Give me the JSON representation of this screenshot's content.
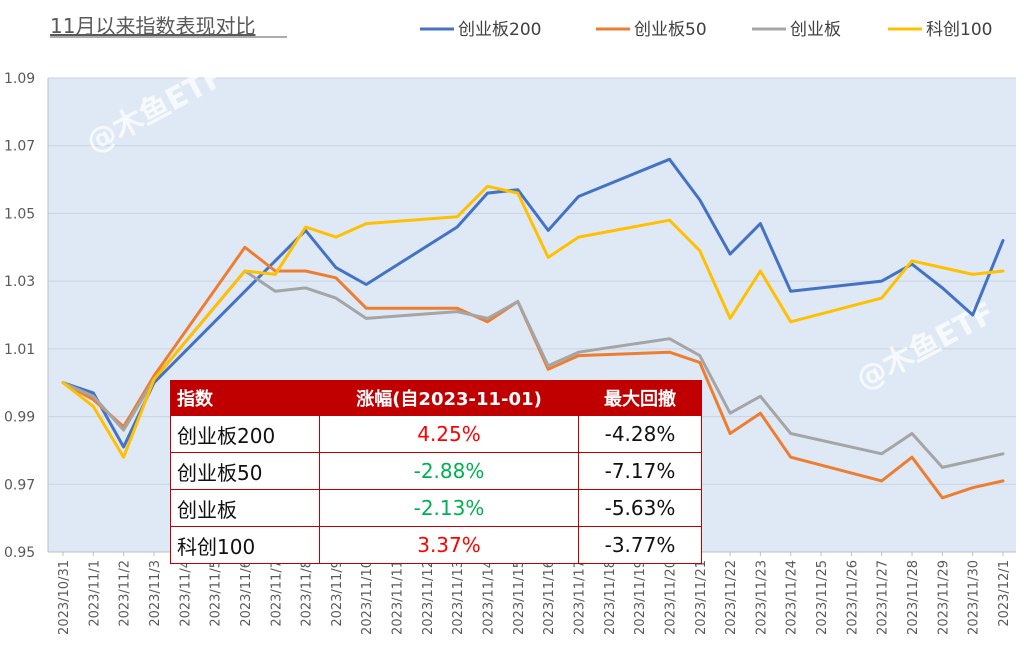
{
  "chart_data": {
    "type": "line",
    "title": "11月以来指数表现对比",
    "ylim": [
      0.95,
      1.09
    ],
    "yticks": [
      "0.95",
      "0.97",
      "0.99",
      "1.01",
      "1.03",
      "1.05",
      "1.07",
      "1.09"
    ],
    "categories": [
      "2023/10/31",
      "2023/11/1",
      "2023/11/2",
      "2023/11/3",
      "2023/11/4",
      "2023/11/5",
      "2023/11/6",
      "2023/11/7",
      "2023/11/8",
      "2023/11/9",
      "2023/11/10",
      "2023/11/11",
      "2023/11/12",
      "2023/11/13",
      "2023/11/14",
      "2023/11/15",
      "2023/11/16",
      "2023/11/17",
      "2023/11/18",
      "2023/11/19",
      "2023/11/20",
      "2023/11/21",
      "2023/11/22",
      "2023/11/23",
      "2023/11/24",
      "2023/11/25",
      "2023/11/26",
      "2023/11/27",
      "2023/11/28",
      "2023/11/29",
      "2023/11/30",
      "2023/12/1"
    ],
    "grid": true,
    "legend_position": "top-right",
    "series": [
      {
        "name": "创业板200",
        "color": "#4472c4",
        "values": [
          1.0,
          0.997,
          0.981,
          1.0,
          null,
          null,
          1.027,
          null,
          1.045,
          1.034,
          1.029,
          null,
          null,
          1.046,
          1.056,
          1.057,
          1.045,
          1.055,
          null,
          null,
          1.066,
          1.054,
          1.038,
          1.047,
          1.027,
          null,
          null,
          1.03,
          1.035,
          1.028,
          1.02,
          1.042
        ]
      },
      {
        "name": "创业板50",
        "color": "#ed7d31",
        "values": [
          1.0,
          0.995,
          0.987,
          1.002,
          null,
          null,
          1.04,
          1.033,
          1.033,
          1.031,
          1.022,
          null,
          null,
          1.022,
          1.018,
          1.024,
          1.004,
          1.008,
          null,
          null,
          1.009,
          1.006,
          0.985,
          0.991,
          0.978,
          null,
          null,
          0.971,
          0.978,
          0.966,
          0.969,
          0.971
        ]
      },
      {
        "name": "创业板",
        "color": "#a5a5a5",
        "values": [
          1.0,
          0.996,
          0.986,
          1.001,
          null,
          null,
          1.033,
          1.027,
          1.028,
          1.025,
          1.019,
          null,
          null,
          1.021,
          1.019,
          1.024,
          1.005,
          1.009,
          null,
          null,
          1.013,
          1.008,
          0.991,
          0.996,
          0.985,
          null,
          null,
          0.979,
          0.985,
          0.975,
          0.977,
          0.979
        ]
      },
      {
        "name": "科创100",
        "color": "#ffc000",
        "values": [
          1.0,
          0.993,
          0.978,
          1.001,
          null,
          null,
          1.033,
          1.032,
          1.046,
          1.043,
          1.047,
          null,
          null,
          1.049,
          1.058,
          1.056,
          1.037,
          1.043,
          null,
          null,
          1.048,
          1.039,
          1.019,
          1.033,
          1.018,
          null,
          null,
          1.025,
          1.036,
          1.034,
          1.032,
          1.033
        ]
      }
    ],
    "watermark": "@木鱼ETF"
  },
  "table": {
    "headers": [
      "指数",
      "涨幅(自2023-11-01)",
      "最大回撤"
    ],
    "rows": [
      {
        "name": "创业板200",
        "change": "4.25%",
        "change_color": "#ff0000",
        "drawdown": "-4.28%"
      },
      {
        "name": "创业板50",
        "change": "-2.88%",
        "change_color": "#00b050",
        "drawdown": "-7.17%"
      },
      {
        "name": "创业板",
        "change": "-2.13%",
        "change_color": "#00b050",
        "drawdown": "-5.63%"
      },
      {
        "name": "科创100",
        "change": "3.37%",
        "change_color": "#ff0000",
        "drawdown": "-3.77%"
      }
    ]
  }
}
